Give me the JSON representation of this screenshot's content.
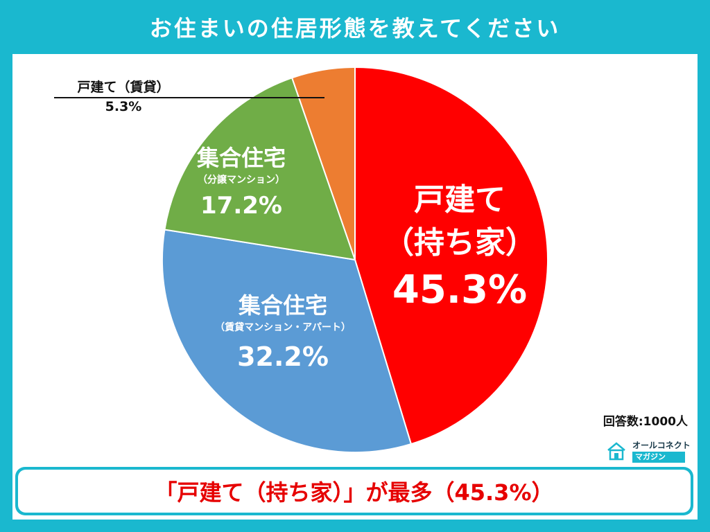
{
  "title": "お住まいの住居形態を教えてください",
  "chart_data": {
    "type": "pie",
    "title": "お住まいの住居形態を教えてください",
    "start": "12 o'clock, clockwise",
    "slices": [
      {
        "label": "戸建て（持ち家）",
        "name_line1": "戸建て",
        "name_line2": "（持ち家）",
        "value": 45.3,
        "value_label": "45.3%",
        "color": "#ff0000"
      },
      {
        "label": "集合住宅（賃貸マンション・アパート）",
        "name_line1": "集合住宅",
        "name_line2": "（賃貸マンション・アパート）",
        "value": 32.2,
        "value_label": "32.2%",
        "color": "#5b9bd5"
      },
      {
        "label": "集合住宅（分譲マンション）",
        "name_line1": "集合住宅",
        "name_line2": "（分譲マンション）",
        "value": 17.2,
        "value_label": "17.2%",
        "color": "#70ad47"
      },
      {
        "label": "戸建て（賃貸）",
        "name_line1": "戸建て（賃貸）",
        "value": 5.3,
        "value_label": "5.3%",
        "color": "#ed7d31"
      }
    ]
  },
  "responses": "回答数:1000人",
  "logo": {
    "top": "オールコネクト",
    "bottom": "マガジン"
  },
  "summary": "「戸建て（持ち家）」が最多（45.3%）",
  "colors": {
    "frame": "#1ab8cf",
    "summary_text": "#e60000"
  }
}
